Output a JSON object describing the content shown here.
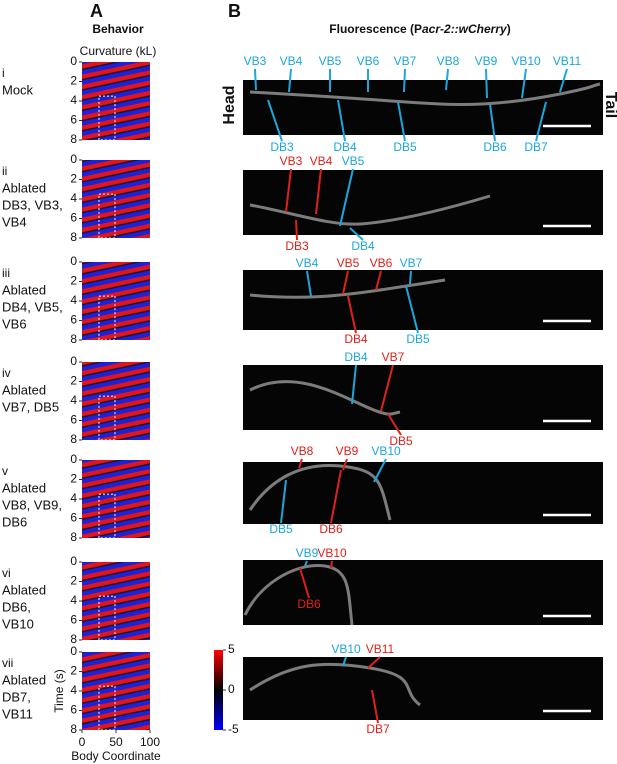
{
  "panel_a": {
    "label": "A",
    "title": "Behavior",
    "colorbar_title": "Curvature (kL)",
    "yticks": [
      0,
      2,
      4,
      6,
      8
    ],
    "ylim": [
      0,
      8
    ],
    "y_label": "Time (s)",
    "xticks": [
      0,
      50,
      100
    ],
    "xlim": [
      0,
      100
    ],
    "x_label": "Body Coordinate",
    "colorbar_ticks": [
      5,
      0,
      -5
    ],
    "colorbar_lim": [
      -5,
      5
    ]
  },
  "panel_b": {
    "label": "B",
    "title": [
      "Fluorescence (P",
      "acr-2::wCherry",
      ")"
    ],
    "head_label": "Head",
    "tail_label": "Tail"
  },
  "rows": [
    {
      "numeral": "i",
      "condition": [
        "Mock"
      ],
      "neurons": [
        {
          "name": "VB3",
          "color": "#1ba6dd"
        },
        {
          "name": "VB4",
          "color": "#1ba6dd"
        },
        {
          "name": "VB5",
          "color": "#1ba6dd"
        },
        {
          "name": "VB6",
          "color": "#1ba6dd"
        },
        {
          "name": "VB7",
          "color": "#1ba6dd"
        },
        {
          "name": "VB8",
          "color": "#1ba6dd"
        },
        {
          "name": "VB9",
          "color": "#1ba6dd"
        },
        {
          "name": "VB10",
          "color": "#1ba6dd"
        },
        {
          "name": "VB11",
          "color": "#1ba6dd"
        },
        {
          "name": "DB3",
          "color": "#1ba6dd"
        },
        {
          "name": "DB4",
          "color": "#1ba6dd"
        },
        {
          "name": "DB5",
          "color": "#1ba6dd"
        },
        {
          "name": "DB6",
          "color": "#1ba6dd"
        },
        {
          "name": "DB7",
          "color": "#1ba6dd"
        }
      ]
    },
    {
      "numeral": "ii",
      "condition": [
        "Ablated",
        "DB3, VB3,",
        "VB4"
      ],
      "neurons": [
        {
          "name": "VB3",
          "color": "#e0201b"
        },
        {
          "name": "VB4",
          "color": "#e0201b"
        },
        {
          "name": "VB5",
          "color": "#1ba6dd"
        },
        {
          "name": "DB3",
          "color": "#e0201b"
        },
        {
          "name": "DB4",
          "color": "#1ba6dd"
        }
      ]
    },
    {
      "numeral": "iii",
      "condition": [
        "Ablated",
        "DB4, VB5,",
        "VB6"
      ],
      "neurons": [
        {
          "name": "VB4",
          "color": "#1ba6dd"
        },
        {
          "name": "VB5",
          "color": "#e0201b"
        },
        {
          "name": "VB6",
          "color": "#e0201b"
        },
        {
          "name": "VB7",
          "color": "#1ba6dd"
        },
        {
          "name": "DB4",
          "color": "#e0201b"
        },
        {
          "name": "DB5",
          "color": "#1ba6dd"
        }
      ]
    },
    {
      "numeral": "iv",
      "condition": [
        "Ablated",
        "VB7, DB5"
      ],
      "neurons": [
        {
          "name": "DB4",
          "color": "#1ba6dd"
        },
        {
          "name": "VB7",
          "color": "#e0201b"
        },
        {
          "name": "DB5",
          "color": "#e0201b"
        }
      ]
    },
    {
      "numeral": "v",
      "condition": [
        "Ablated",
        "VB8, VB9,",
        "DB6"
      ],
      "neurons": [
        {
          "name": "VB8",
          "color": "#e0201b"
        },
        {
          "name": "VB9",
          "color": "#e0201b"
        },
        {
          "name": "VB10",
          "color": "#1ba6dd"
        },
        {
          "name": "DB5",
          "color": "#1ba6dd"
        },
        {
          "name": "DB6",
          "color": "#e0201b"
        }
      ]
    },
    {
      "numeral": "vi",
      "condition": [
        "Ablated",
        "DB6,",
        "VB10"
      ],
      "neurons": [
        {
          "name": "VB9",
          "color": "#1ba6dd"
        },
        {
          "name": "VB10",
          "color": "#e0201b"
        },
        {
          "name": "DB6",
          "color": "#e0201b"
        }
      ]
    },
    {
      "numeral": "vii",
      "condition": [
        "Ablated",
        "DB7,",
        "VB11"
      ],
      "neurons": [
        {
          "name": "VB10",
          "color": "#1ba6dd"
        },
        {
          "name": "VB11",
          "color": "#e0201b"
        },
        {
          "name": "DB7",
          "color": "#e0201b"
        }
      ]
    }
  ]
}
